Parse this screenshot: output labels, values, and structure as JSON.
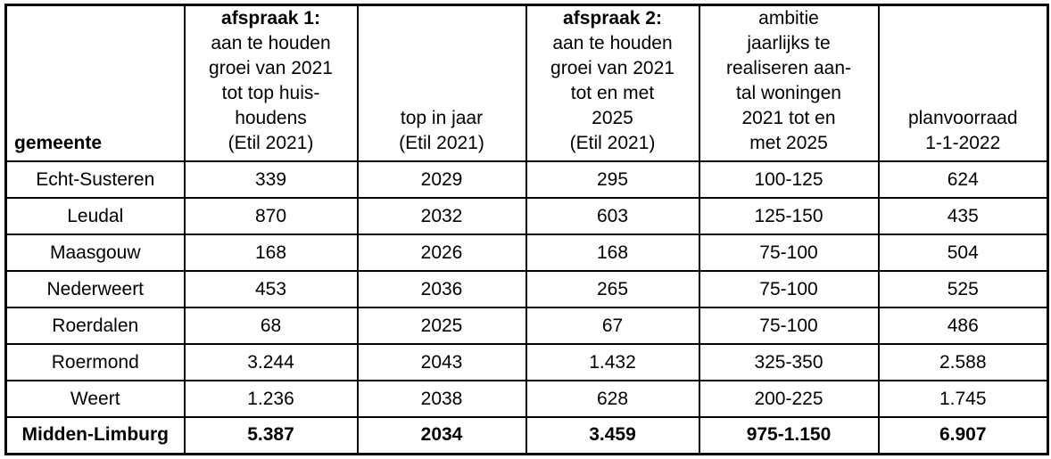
{
  "colors": {
    "background": "#ffffff",
    "border": "#000000",
    "text": "#000000"
  },
  "table": {
    "header": {
      "gemeente": "gemeente",
      "afspraak1": {
        "title": "afspraak 1:",
        "lines": "aan te houden\ngroei van 2021\ntot top huis-\nhoudens\n(Etil 2021)"
      },
      "top_in_jaar": {
        "lines": "top in jaar\n(Etil 2021)"
      },
      "afspraak2": {
        "title": "afspraak 2:",
        "lines": "aan te houden\ngroei van 2021\ntot en met\n2025\n(Etil 2021)"
      },
      "ambitie": {
        "lines": "ambitie\njaarlijks te\nrealiseren aan-\ntal woningen\n2021 tot en\nmet 2025"
      },
      "planvoorraad": {
        "lines": "planvoorraad\n1-1-2022"
      }
    },
    "rows": [
      {
        "gemeente": "Echt-Susteren",
        "afspraak1": "339",
        "top_in_jaar": "2029",
        "afspraak2": "295",
        "ambitie": "100-125",
        "planvoorraad": "624"
      },
      {
        "gemeente": "Leudal",
        "afspraak1": "870",
        "top_in_jaar": "2032",
        "afspraak2": "603",
        "ambitie": "125-150",
        "planvoorraad": "435"
      },
      {
        "gemeente": "Maasgouw",
        "afspraak1": "168",
        "top_in_jaar": "2026",
        "afspraak2": "168",
        "ambitie": "75-100",
        "planvoorraad": "504"
      },
      {
        "gemeente": "Nederweert",
        "afspraak1": "453",
        "top_in_jaar": "2036",
        "afspraak2": "265",
        "ambitie": "75-100",
        "planvoorraad": "525"
      },
      {
        "gemeente": "Roerdalen",
        "afspraak1": "68",
        "top_in_jaar": "2025",
        "afspraak2": "67",
        "ambitie": "75-100",
        "planvoorraad": "486"
      },
      {
        "gemeente": "Roermond",
        "afspraak1": "3.244",
        "top_in_jaar": "2043",
        "afspraak2": "1.432",
        "ambitie": "325-350",
        "planvoorraad": "2.588"
      },
      {
        "gemeente": "Weert",
        "afspraak1": "1.236",
        "top_in_jaar": "2038",
        "afspraak2": "628",
        "ambitie": "200-225",
        "planvoorraad": "1.745"
      }
    ],
    "total_row": {
      "gemeente": "Midden-Limburg",
      "afspraak1": "5.387",
      "top_in_jaar": "2034",
      "afspraak2": "3.459",
      "ambitie": "975-1.150",
      "planvoorraad": "6.907"
    }
  }
}
